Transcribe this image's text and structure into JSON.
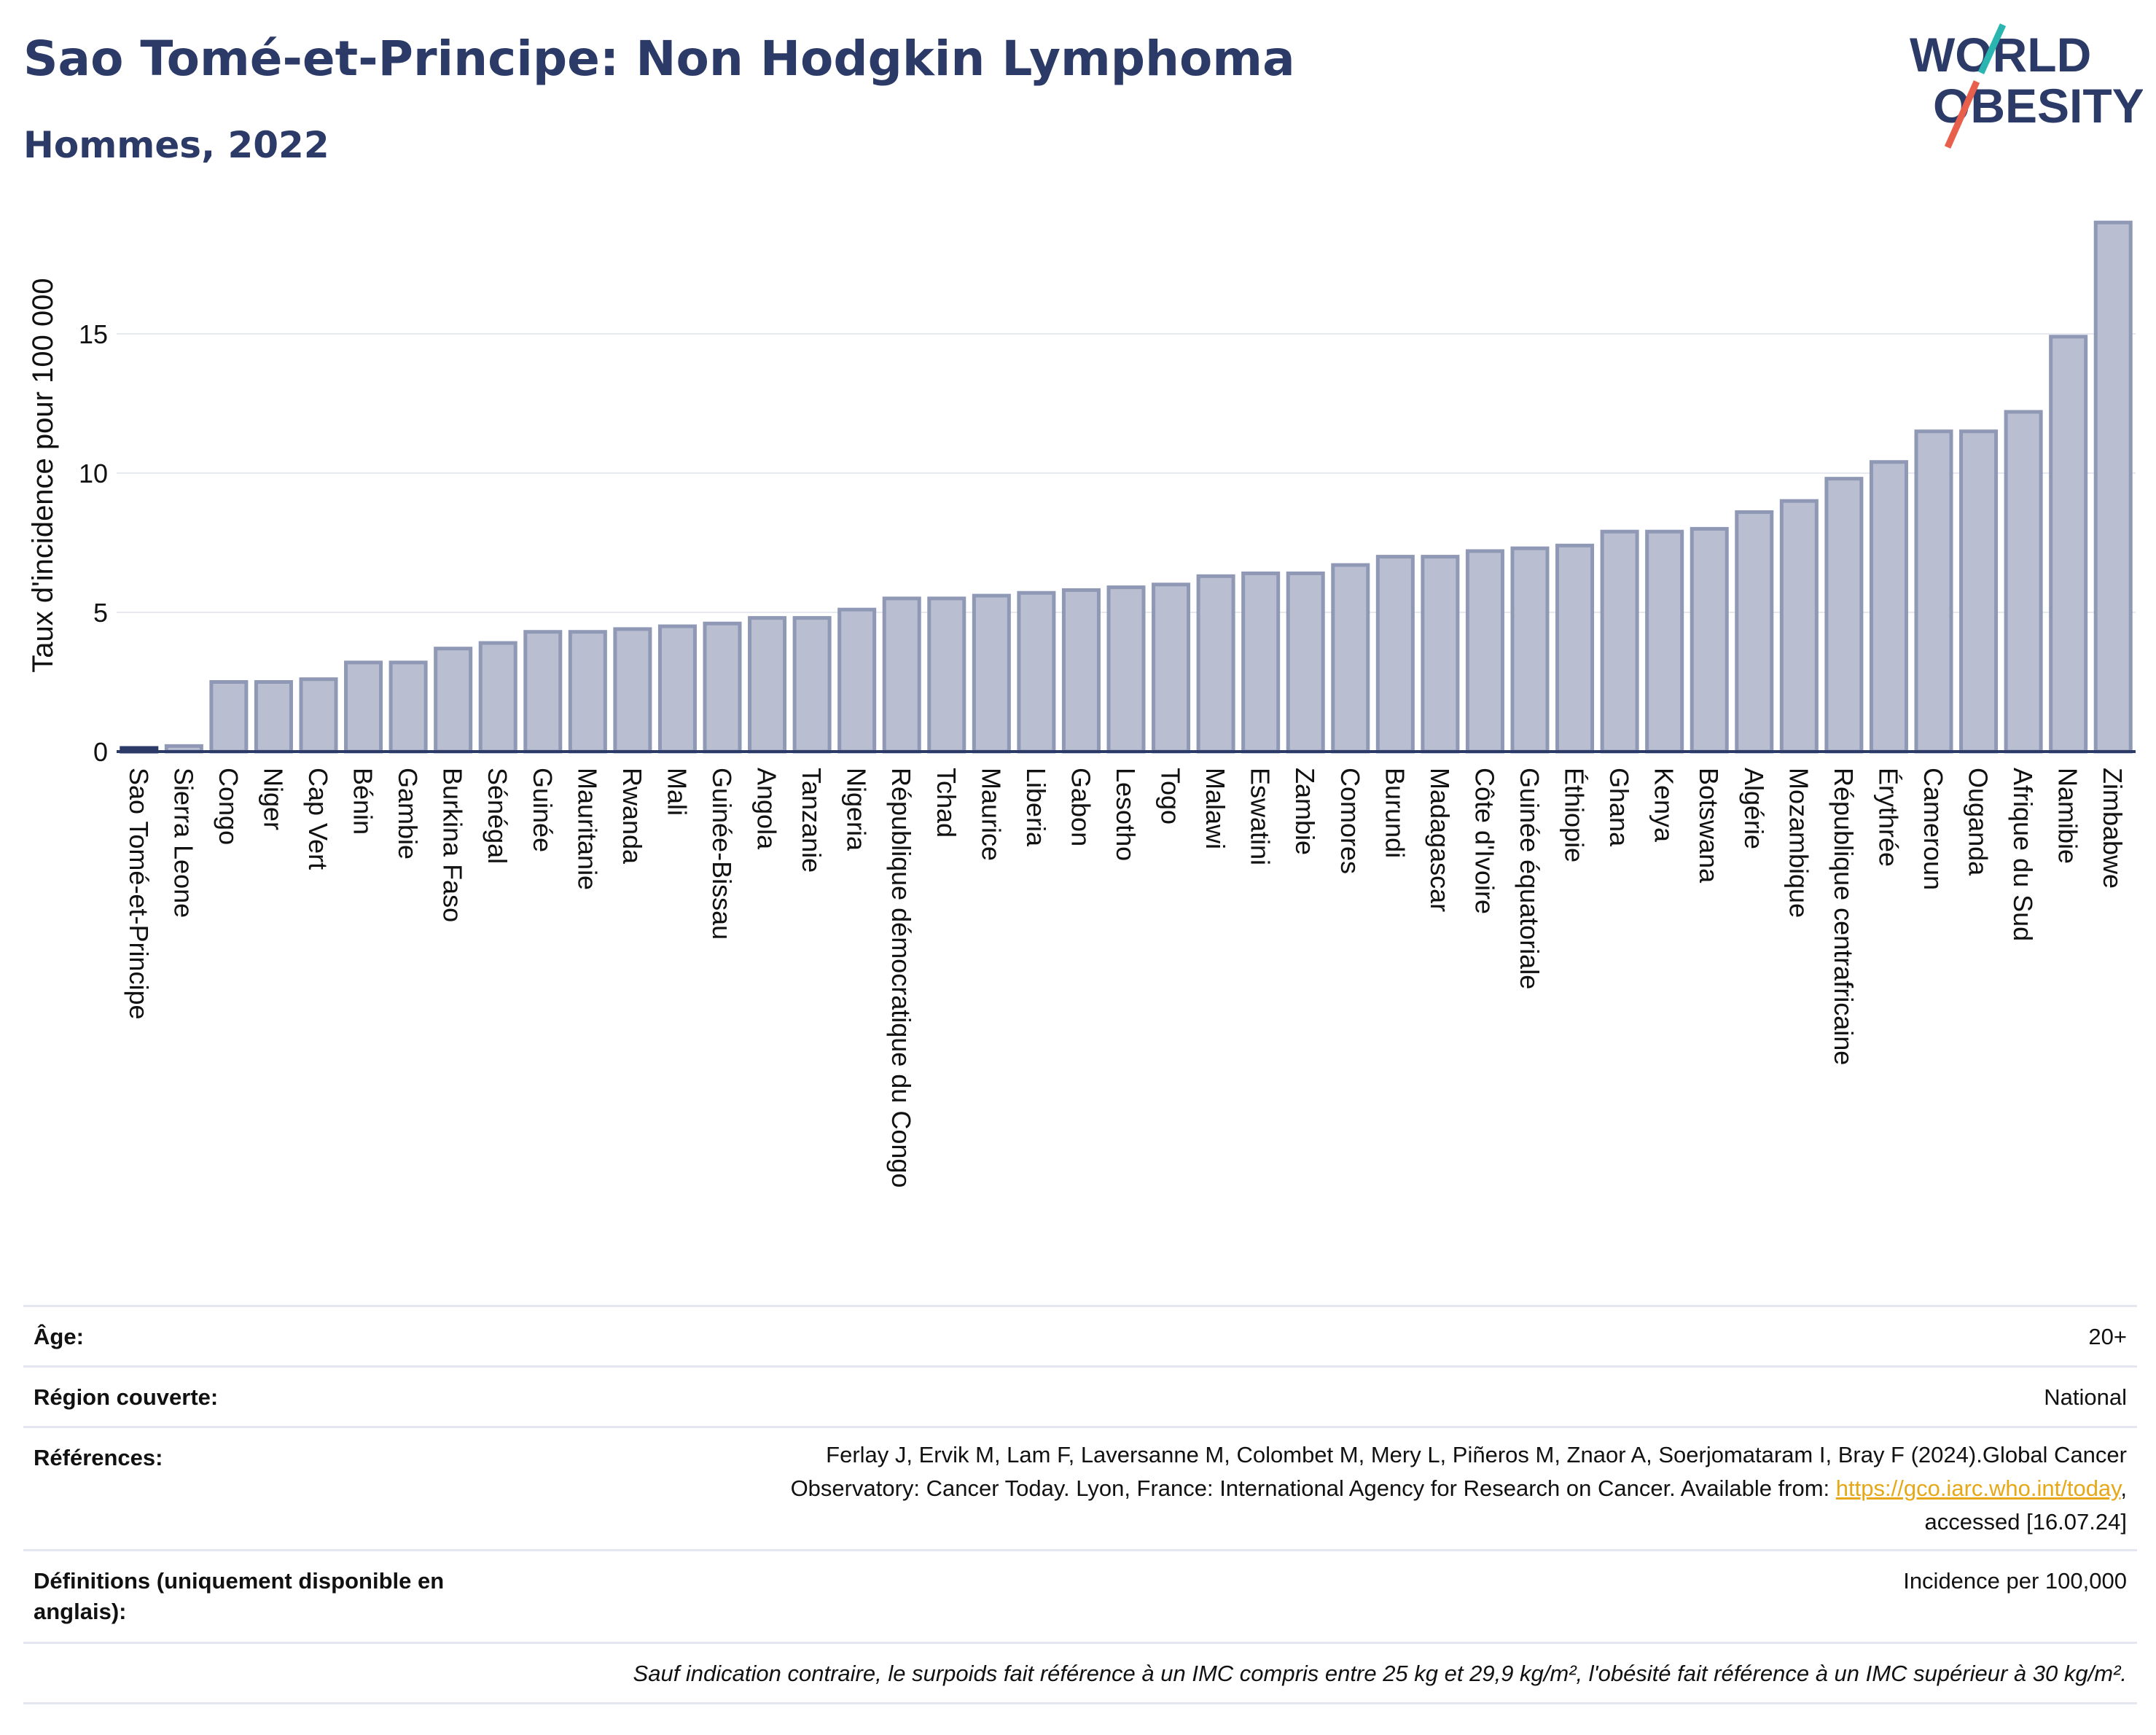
{
  "title": "Sao Tomé-et-Principe: Non Hodgkin Lymphoma",
  "subtitle": "Hommes, 2022",
  "logo": {
    "line1": "WORLD",
    "line2": "OBESITY",
    "accent_colors": [
      "#2bb5b0",
      "#e8604c"
    ]
  },
  "chart_data": {
    "type": "bar",
    "ylabel": "Taux d'incidence pour 100 000",
    "xlabel": "",
    "ylim": [
      0,
      19
    ],
    "yticks": [
      0,
      5,
      10,
      15
    ],
    "grid": true,
    "bar_color": "#b9bfd0",
    "bar_edge_color": "#8f98b5",
    "highlight_color": "#2b3a67",
    "highlight_category": "Sao Tomé-et-Principe",
    "categories": [
      "Sao Tomé-et-Principe",
      "Sierra Leone",
      "Congo",
      "Niger",
      "Cap Vert",
      "Bénin",
      "Gambie",
      "Burkina Faso",
      "Sénégal",
      "Guinée",
      "Mauritanie",
      "Rwanda",
      "Mali",
      "Guinée-Bissau",
      "Angola",
      "Tanzanie",
      "Nigeria",
      "République démocratique du Congo",
      "Tchad",
      "Maurice",
      "Liberia",
      "Gabon",
      "Lesotho",
      "Togo",
      "Malawi",
      "Eswatini",
      "Zambie",
      "Comores",
      "Burundi",
      "Madagascar",
      "Côte d'Ivoire",
      "Guinée équatoriale",
      "Éthiopie",
      "Ghana",
      "Kenya",
      "Botswana",
      "Algérie",
      "Mozambique",
      "République centrafricaine",
      "Érythrée",
      "Cameroun",
      "Ouganda",
      "Afrique du Sud",
      "Namibie",
      "Zimbabwe"
    ],
    "values": [
      0.0,
      0.2,
      2.5,
      2.5,
      2.6,
      3.2,
      3.2,
      3.7,
      3.9,
      4.3,
      4.3,
      4.4,
      4.5,
      4.6,
      4.8,
      4.8,
      5.1,
      5.5,
      5.5,
      5.6,
      5.7,
      5.8,
      5.9,
      6.0,
      6.3,
      6.4,
      6.4,
      6.7,
      7.0,
      7.0,
      7.2,
      7.3,
      7.4,
      7.9,
      7.9,
      8.0,
      8.6,
      9.0,
      9.8,
      10.4,
      11.5,
      11.5,
      12.2,
      14.9,
      19.0
    ]
  },
  "meta": {
    "age_label": "Âge:",
    "age_value": "20+",
    "region_label": "Région couverte:",
    "region_value": "National",
    "references_label": "Références:",
    "references_line1": "Ferlay J, Ervik M, Lam F, Laversanne M, Colombet M, Mery L, Piñeros M, Znaor A, Soerjomataram I, Bray F (2024).Global Cancer",
    "references_line2_pre": "Observatory: Cancer Today. Lyon, France: International Agency for Research on Cancer. Available from: ",
    "references_link": "https://gco.iarc.who.int/today",
    "references_line2_post": ",",
    "references_line3": "accessed [16.07.24]",
    "definitions_label": "Définitions (uniquement disponible en anglais):",
    "definitions_value": "Incidence per 100,000",
    "note": "Sauf indication contraire, le surpoids fait référence à un IMC compris entre 25 kg et 29,9 kg/m², l'obésité fait référence à un IMC supérieur à 30 kg/m²."
  }
}
